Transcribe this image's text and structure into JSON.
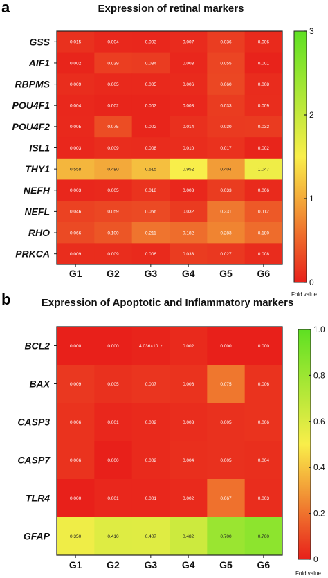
{
  "chart_data": [
    {
      "type": "heatmap",
      "panel": "a",
      "title": "Expression of retinal markers",
      "columns": [
        "G1",
        "G2",
        "G3",
        "G4",
        "G5",
        "G6"
      ],
      "rows": [
        "GSS",
        "AIF1",
        "RBPMS",
        "POU4F1",
        "POU4F2",
        "ISL1",
        "THY1",
        "NEFH",
        "NEFL",
        "RHO",
        "PRKCA"
      ],
      "values": [
        [
          "0.015",
          "0.004",
          "0.003",
          "0.007",
          "0.036",
          "0.006"
        ],
        [
          "0.002",
          "0.039",
          "0.034",
          "0.003",
          "0.055",
          "0.001"
        ],
        [
          "0.009",
          "0.005",
          "0.005",
          "0.006",
          "0.060",
          "0.008"
        ],
        [
          "0.004",
          "0.002",
          "0.002",
          "0.003",
          "0.033",
          "0.009"
        ],
        [
          "0.005",
          "0.075",
          "0.002",
          "0.014",
          "0.030",
          "0.032"
        ],
        [
          "0.003",
          "0.009",
          "0.008",
          "0.010",
          "0.017",
          "0.002"
        ],
        [
          "0.558",
          "0.480",
          "0.615",
          "0.952",
          "0.404",
          "1.047"
        ],
        [
          "0.003",
          "0.005",
          "0.018",
          "0.003",
          "0.033",
          "0.006"
        ],
        [
          "0.046",
          "0.059",
          "0.066",
          "0.032",
          "0.231",
          "0.112"
        ],
        [
          "0.066",
          "0.100",
          "0.211",
          "0.182",
          "0.283",
          "0.180"
        ],
        [
          "0.009",
          "0.009",
          "0.006",
          "0.033",
          "0.027",
          "0.008"
        ]
      ],
      "colorbar": {
        "min": 0,
        "max": 3,
        "ticks": [
          "0",
          "1",
          "2",
          "3"
        ],
        "label": "Fold value"
      }
    },
    {
      "type": "heatmap",
      "panel": "b",
      "title": "Expression of Apoptotic and Inflammatory markers",
      "columns": [
        "G1",
        "G2",
        "G3",
        "G4",
        "G5",
        "G6"
      ],
      "rows": [
        "BCL2",
        "BAX",
        "CASP3",
        "CASP7",
        "TLR4",
        "GFAP"
      ],
      "values": [
        [
          "0.000",
          "0.000",
          "4.036×10⁻⁴",
          "0.002",
          "0.000",
          "0.000"
        ],
        [
          "0.009",
          "0.005",
          "0.007",
          "0.006",
          "0.075",
          "0.006"
        ],
        [
          "0.006",
          "0.001",
          "0.002",
          "0.003",
          "0.005",
          "0.006"
        ],
        [
          "0.006",
          "0.000",
          "0.002",
          "0.004",
          "0.005",
          "0.004"
        ],
        [
          "0.000",
          "0.001",
          "0.001",
          "0.002",
          "0.067",
          "0.003"
        ],
        [
          "0.350",
          "0.410",
          "0.407",
          "0.482",
          "0.700",
          "0.760"
        ]
      ],
      "colorbar": {
        "min": 0,
        "max": 1,
        "ticks": [
          "0",
          "0.2",
          "0.4",
          "0.6",
          "0.8",
          "1.0"
        ],
        "label": "Fold value"
      }
    }
  ],
  "colors": {
    "low": "#e8201a",
    "mid": "#f9ee4a",
    "high": "#5ee022"
  }
}
